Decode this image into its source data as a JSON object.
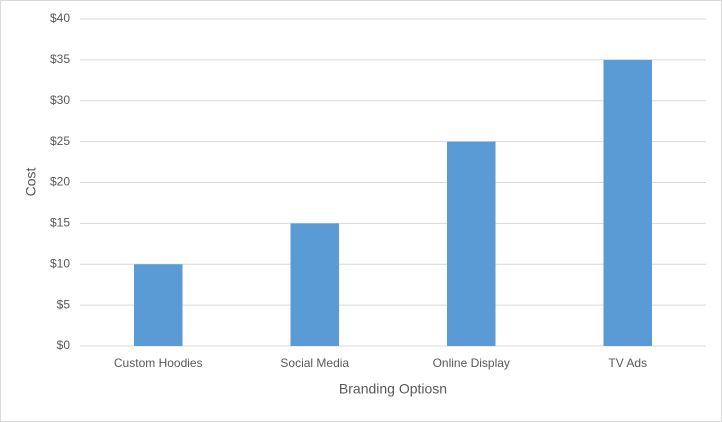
{
  "chart_data": {
    "type": "bar",
    "x_label": "Branding Optiosn",
    "y_label": "Cost",
    "categories": [
      "Custom Hoodies",
      "Social Media",
      "Online Display",
      "TV Ads"
    ],
    "values": [
      10,
      15,
      25,
      35
    ],
    "color": "#5b9bd5",
    "ylim": [
      0,
      40
    ],
    "yticks": [
      {
        "value": 0,
        "label": "$0"
      },
      {
        "value": 5,
        "label": "$5"
      },
      {
        "value": 10,
        "label": "$10"
      },
      {
        "value": 15,
        "label": "$15"
      },
      {
        "value": 20,
        "label": "$20"
      },
      {
        "value": 25,
        "label": "$25"
      },
      {
        "value": 30,
        "label": "$30"
      },
      {
        "value": 35,
        "label": "$35"
      },
      {
        "value": 40,
        "label": "$40"
      }
    ],
    "grid": true
  }
}
